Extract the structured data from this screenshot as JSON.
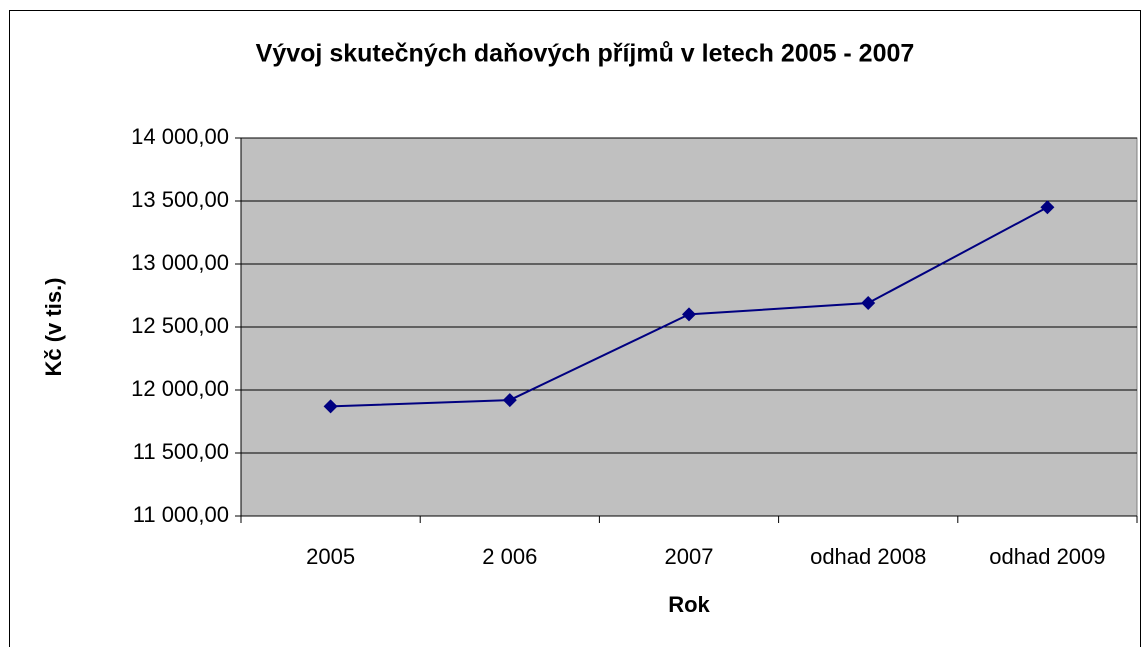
{
  "chart_data": {
    "type": "line",
    "title": "Vývoj skutečných daňových příjmů v letech 2005 - 2007",
    "x_label": "Rok",
    "y_label": "Kč (v tis.)",
    "categories": [
      "2005",
      "2 006",
      "2007",
      "odhad 2008",
      "odhad 2009"
    ],
    "values": [
      11870,
      11920,
      12600,
      12690,
      13450
    ],
    "color": "#000080",
    "plot_background": "#c0c0c0",
    "grid": true,
    "ylim": [
      11000,
      14000
    ],
    "yticks": [
      {
        "value": 11000,
        "label": "11 000,00"
      },
      {
        "value": 11500,
        "label": "11 500,00"
      },
      {
        "value": 12000,
        "label": "12 000,00"
      },
      {
        "value": 12500,
        "label": "12 500,00"
      },
      {
        "value": 13000,
        "label": "13 000,00"
      },
      {
        "value": 13500,
        "label": "13 500,00"
      },
      {
        "value": 14000,
        "label": "14 000,00"
      }
    ]
  }
}
